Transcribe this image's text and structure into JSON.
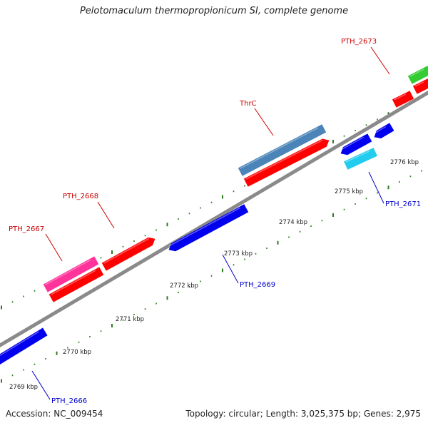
{
  "title": "Pelotomaculum thermopropionicum SI, complete genome",
  "footer": {
    "accession": "Accession: NC_009454",
    "summary": "Topology: circular; Length: 3,025,375 bp; Genes: 2,975"
  },
  "colors": {
    "backbone": "#8a8a8a",
    "tick": "#2e7d1e",
    "forward_label": "#cc0000",
    "reverse_label": "#0000cc",
    "forward_cds": "#ff0000",
    "reverse_cds": "#0000ee",
    "pink_gene": "#ff3399",
    "steel_gene": "#4a84b8",
    "cyan_gene": "#22ccee",
    "green_gene": "#33cc33"
  },
  "scale": {
    "labels": [
      {
        "name": "tick-label-2769",
        "text": "2769 kbp"
      },
      {
        "name": "tick-label-2770",
        "text": "2770 kbp"
      },
      {
        "name": "tick-label-2771",
        "text": "2771 kbp"
      },
      {
        "name": "tick-label-2772",
        "text": "2772 kbp"
      },
      {
        "name": "tick-label-2773",
        "text": "2773 kbp"
      },
      {
        "name": "tick-label-2774",
        "text": "2774 kbp"
      },
      {
        "name": "tick-label-2775",
        "text": "2775 kbp"
      },
      {
        "name": "tick-label-2776",
        "text": "2776 kbp"
      }
    ]
  },
  "gene_labels": [
    {
      "name": "PTH_2673",
      "text": "PTH_2673",
      "strand": "forward"
    },
    {
      "name": "ThrC",
      "text": "ThrC",
      "strand": "forward"
    },
    {
      "name": "PTH_2668",
      "text": "PTH_2668",
      "strand": "forward"
    },
    {
      "name": "PTH_2667",
      "text": "PTH_2667",
      "strand": "forward"
    },
    {
      "name": "PTH_2671",
      "text": "PTH_2671",
      "strand": "reverse"
    },
    {
      "name": "PTH_2669",
      "text": "PTH_2669",
      "strand": "reverse"
    },
    {
      "name": "PTH_2666",
      "text": "PTH_2666",
      "strand": "reverse"
    }
  ]
}
